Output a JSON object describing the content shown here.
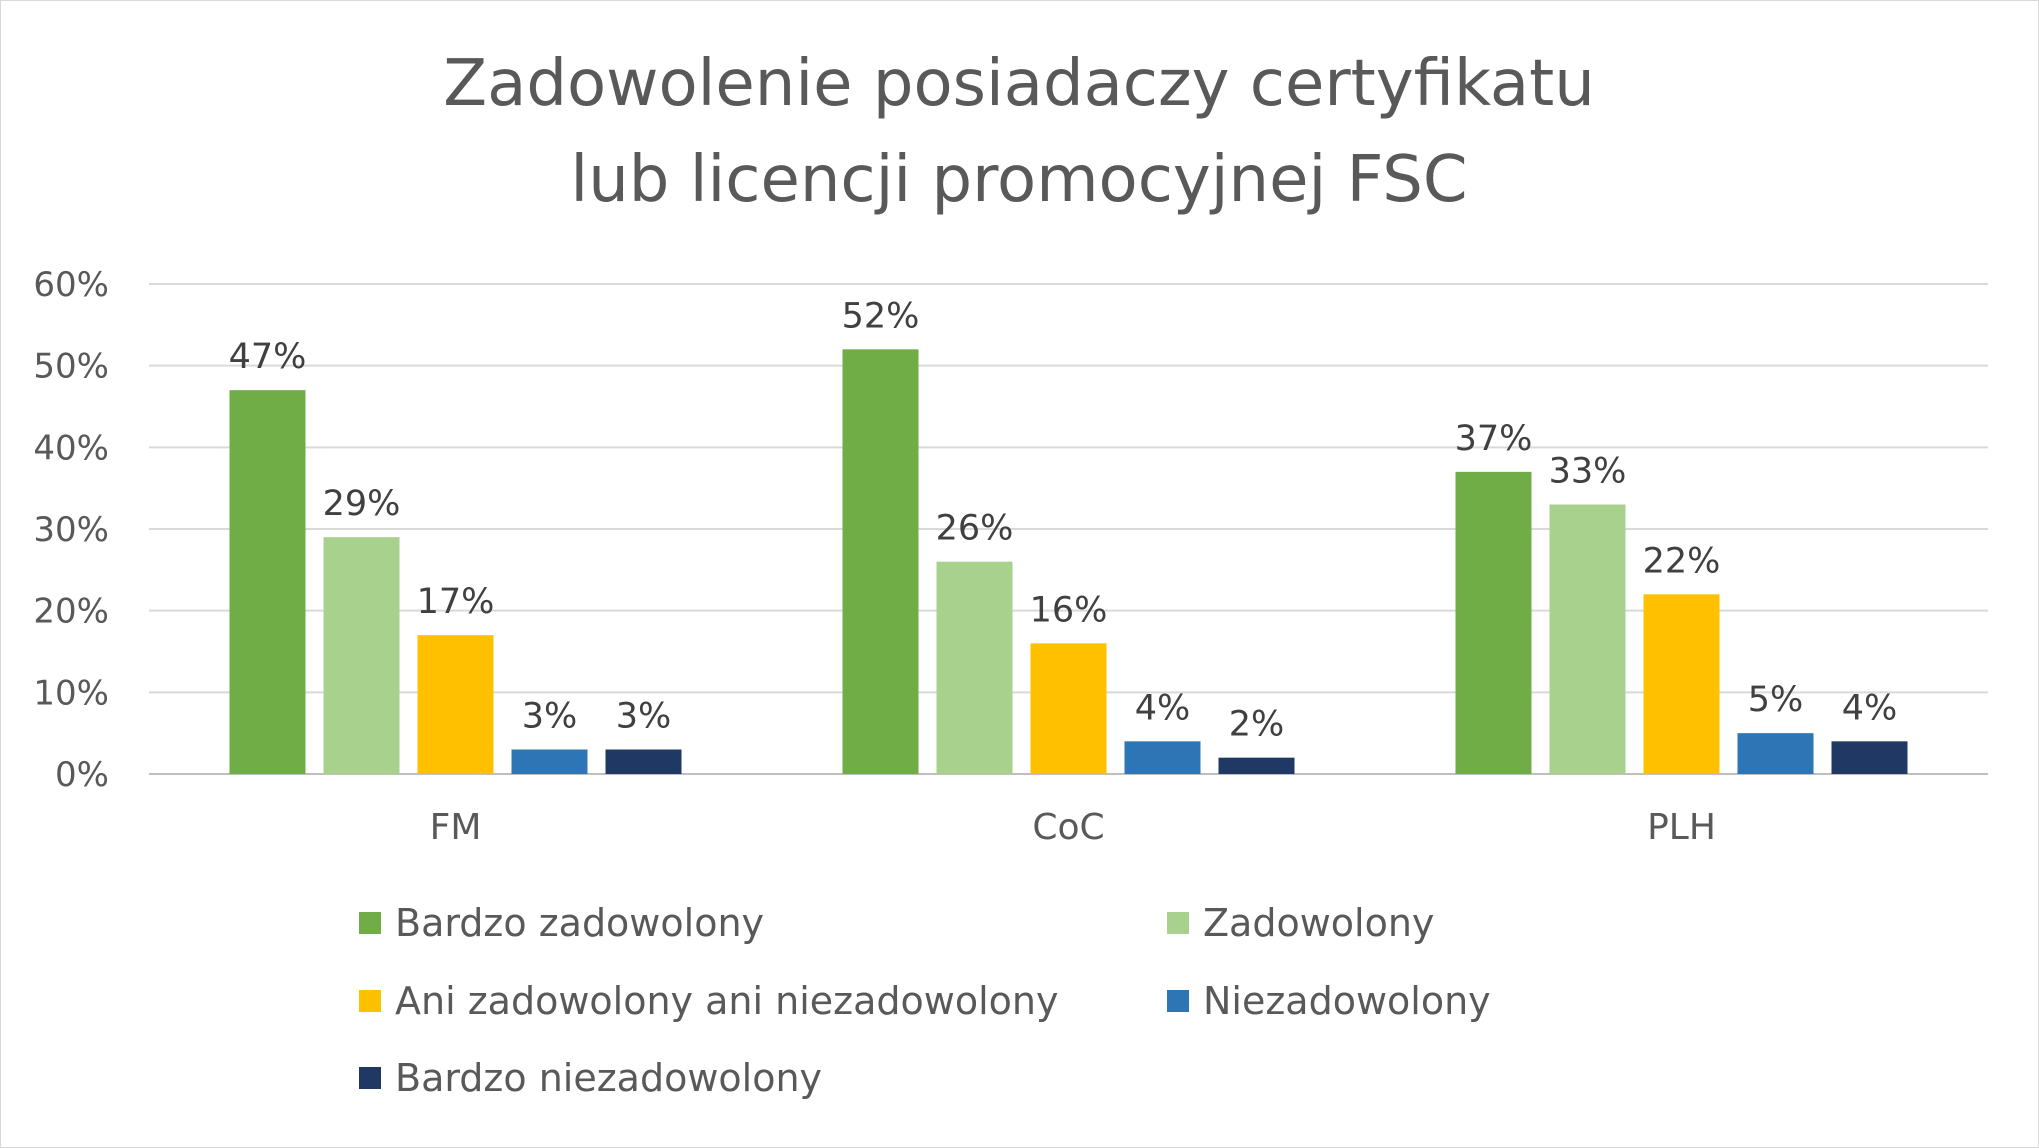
{
  "chart_data": {
    "type": "bar",
    "title_lines": [
      "Zadowolenie posiadaczy certyfikatu",
      "lub licencji promocyjnej FSC"
    ],
    "categories": [
      "FM",
      "CoC",
      "PLH"
    ],
    "series": [
      {
        "name": "Bardzo zadowolony",
        "color": "#70ad47",
        "values": [
          47,
          52,
          37
        ]
      },
      {
        "name": "Zadowolony",
        "color": "#a9d18e",
        "values": [
          29,
          26,
          33
        ]
      },
      {
        "name": "Ani zadowolony ani niezadowolony",
        "color": "#ffc000",
        "values": [
          17,
          16,
          22
        ]
      },
      {
        "name": "Niezadowolony",
        "color": "#2e75b6",
        "values": [
          3,
          4,
          5
        ]
      },
      {
        "name": "Bardzo niezadowolony",
        "color": "#203864",
        "values": [
          3,
          2,
          4
        ]
      }
    ],
    "ylim": [
      0,
      60
    ],
    "yticks": [
      "0%",
      "10%",
      "20%",
      "30%",
      "40%",
      "50%",
      "60%"
    ],
    "value_suffix": "%",
    "grid": true,
    "legend_position": "bottom"
  }
}
